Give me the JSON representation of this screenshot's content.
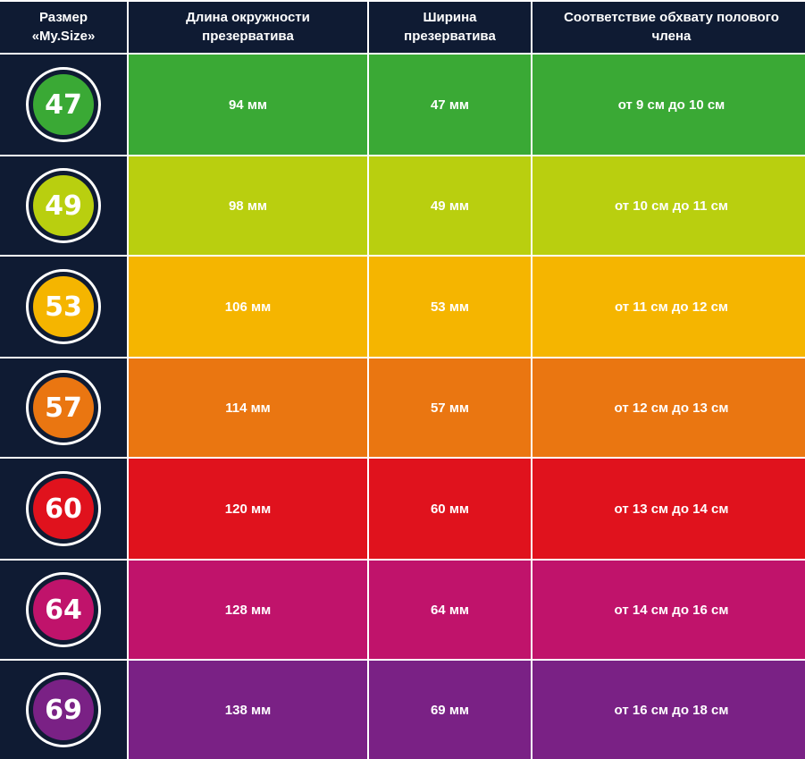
{
  "header": {
    "size": "Размер\n«My.Size»",
    "circumference": "Длина окружности\nпрезерватива",
    "width": "Ширина\nпрезерватива",
    "girth": "Соответствие обхвату полового\nчлена"
  },
  "rows": [
    {
      "size": "47",
      "circumference": "94 мм",
      "width": "47 мм",
      "girth": "от 9 см до 10 см",
      "color": "#3aa935"
    },
    {
      "size": "49",
      "circumference": "98 мм",
      "width": "49 мм",
      "girth": "от 10 см до 11 см",
      "color": "#b9cf0f"
    },
    {
      "size": "53",
      "circumference": "106 мм",
      "width": "53 мм",
      "girth": "от 11 см до 12 см",
      "color": "#f5b500"
    },
    {
      "size": "57",
      "circumference": "114 мм",
      "width": "57 мм",
      "girth": "от 12 см до 13 см",
      "color": "#ea7611"
    },
    {
      "size": "60",
      "circumference": "120 мм",
      "width": "60 мм",
      "girth": "от 13 см до 14 см",
      "color": "#e0121d"
    },
    {
      "size": "64",
      "circumference": "128 мм",
      "width": "64 мм",
      "girth": "от 14 см до 16 см",
      "color": "#c0136b"
    },
    {
      "size": "69",
      "circumference": "138 мм",
      "width": "69 мм",
      "girth": "от 16 см до 18 см",
      "color": "#7a2185"
    }
  ],
  "colors": {
    "header_bg": "#0f1b33",
    "text": "#ffffff"
  }
}
